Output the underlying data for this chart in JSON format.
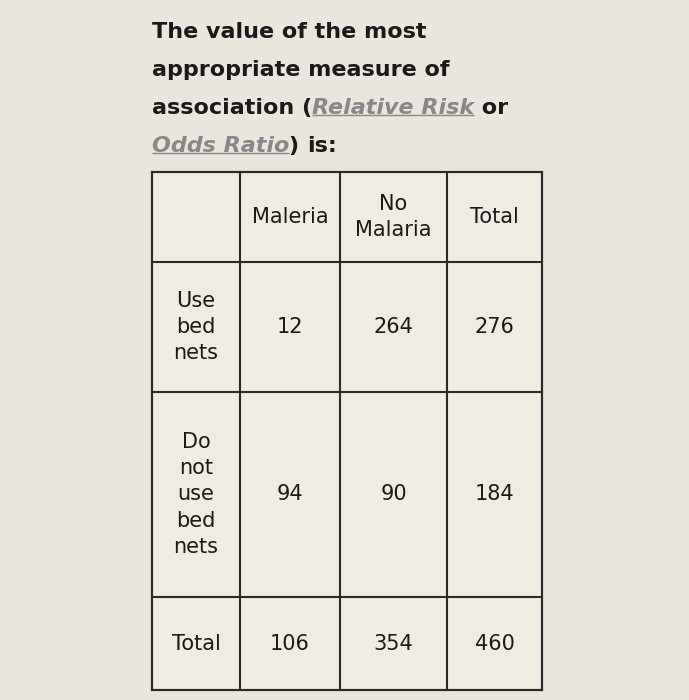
{
  "background_color": "#eae6de",
  "table_bg": "#f0ece2",
  "border_color": "#2a2a2a",
  "text_color": "#1a1a1a",
  "link_color": "#888888",
  "col_headers": [
    "",
    "Maleria",
    "No\nMalaria",
    "Total"
  ],
  "row_labels": [
    "Use\nbed\nnets",
    "Do\nnot\nuse\nbed\nnets",
    "Total"
  ],
  "data": [
    [
      "12",
      "264",
      "276"
    ],
    [
      "94",
      "90",
      "184"
    ],
    [
      "106",
      "354",
      "460"
    ]
  ],
  "font_size_title": 16,
  "font_size_table": 15,
  "fig_width": 6.89,
  "fig_height": 7.0,
  "dpi": 100
}
